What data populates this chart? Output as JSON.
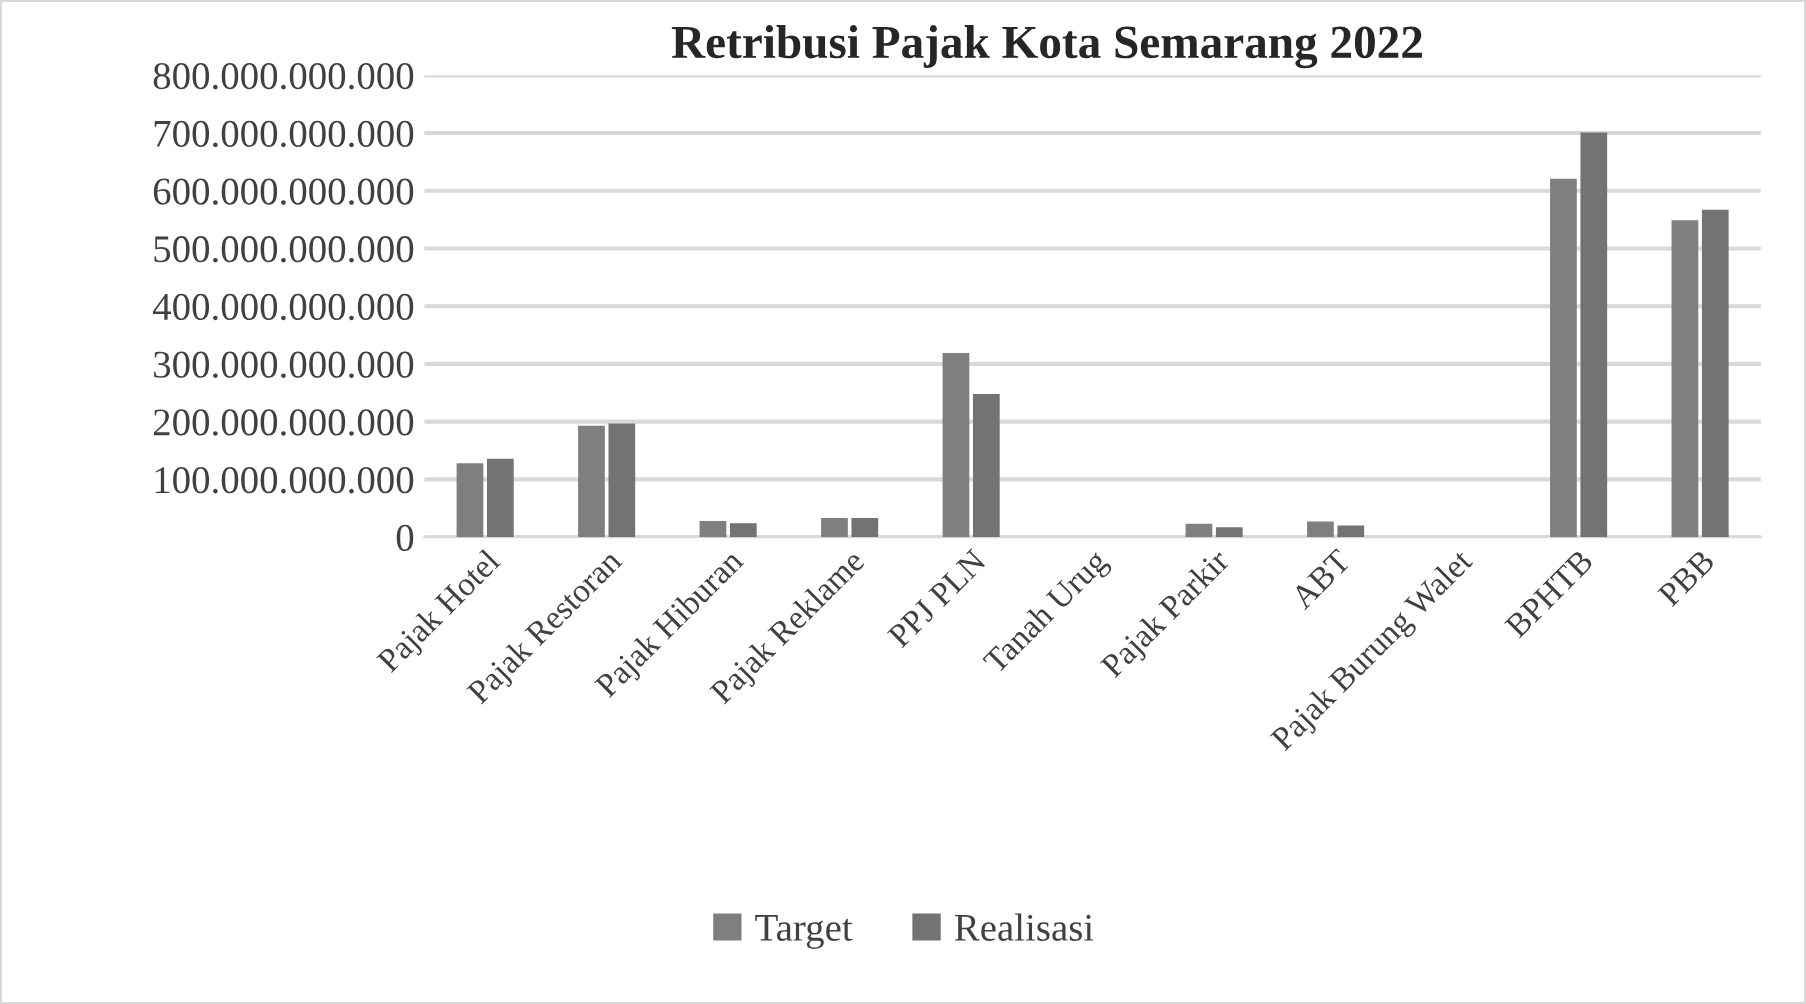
{
  "chart_data": {
    "type": "bar",
    "title": "Retribusi Pajak Kota Semarang 2022",
    "categories": [
      "Pajak Hotel",
      "Pajak Restoran",
      "Pajak Hiburan",
      "Pajak Reklame",
      "PPJ PLN",
      "Tanah Urug",
      "Pajak Parkir",
      "ABT",
      "Pajak Burung Walet",
      "BPHTB",
      "PBB"
    ],
    "series": [
      {
        "name": "Target",
        "color": "#7f7f7f",
        "values": [
          128000000000,
          193000000000,
          28000000000,
          33000000000,
          319000000000,
          0,
          23000000000,
          27000000000,
          0,
          621000000000,
          549000000000
        ]
      },
      {
        "name": "Realisasi",
        "color": "#737373",
        "values": [
          136000000000,
          197000000000,
          24000000000,
          33000000000,
          248000000000,
          0,
          17000000000,
          20000000000,
          0,
          701000000000,
          567000000000
        ]
      }
    ],
    "ylim": [
      0,
      800000000000
    ],
    "yticks": [
      {
        "value": 0,
        "label": "0"
      },
      {
        "value": 100000000000,
        "label": "100.000.000.000"
      },
      {
        "value": 200000000000,
        "label": "200.000.000.000"
      },
      {
        "value": 300000000000,
        "label": "300.000.000.000"
      },
      {
        "value": 400000000000,
        "label": "400.000.000.000"
      },
      {
        "value": 500000000000,
        "label": "500.000.000.000"
      },
      {
        "value": 600000000000,
        "label": "600.000.000.000"
      },
      {
        "value": 700000000000,
        "label": "700.000.000.000"
      },
      {
        "value": 800000000000,
        "label": "800.000.000.000"
      }
    ],
    "grid": "y",
    "legend": "bottom"
  }
}
